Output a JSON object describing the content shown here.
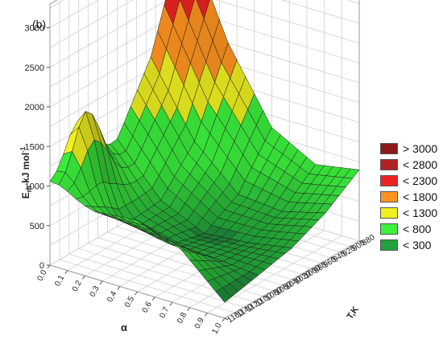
{
  "panel_label": "(b)",
  "chart_data": {
    "type": "surface",
    "title": "",
    "zlabel_main": "E",
    "zlabel_sub": "m",
    "zlabel_rest": " kJ mol",
    "zlabel_sup": "-1",
    "xlabel": "α",
    "ylabel": "T,K",
    "z_ticks": [
      "0",
      "500",
      "1000",
      "1500",
      "2000",
      "2500",
      "3000"
    ],
    "zlim": [
      0,
      3300
    ],
    "alpha_ticks": [
      "0.0",
      "0.1",
      "0.2",
      "0.3",
      "0.4",
      "0.5",
      "0.6",
      "0.7",
      "0.8",
      "0.9",
      "1.0"
    ],
    "alpha_range": [
      0.0,
      1.0
    ],
    "T_ticks": [
      "880",
      "900",
      "920",
      "940",
      "960",
      "980",
      "1000",
      "1020",
      "1040",
      "1060",
      "1080",
      "1100",
      "1120",
      "1140",
      "1160"
    ],
    "T_range": [
      880,
      1160
    ],
    "grid": true,
    "surface_samples": {
      "description_axes": "rows: alpha; columns: T",
      "alpha": [
        0.0,
        0.25,
        0.5,
        0.75,
        1.0
      ],
      "T": [
        880,
        950,
        1020,
        1090,
        1160
      ],
      "E": [
        [
          3300,
          1900,
          1100,
          900,
          1000
        ],
        [
          2000,
          1000,
          500,
          450,
          850
        ],
        [
          1100,
          500,
          250,
          350,
          900
        ],
        [
          800,
          450,
          300,
          350,
          700
        ],
        [
          900,
          600,
          400,
          300,
          200
        ]
      ],
      "peak": {
        "alpha": 0.05,
        "T": 1100,
        "E": 1950
      }
    },
    "legend_position": "right",
    "legend": [
      {
        "label": "> 3000",
        "color": "#8b1a1a"
      },
      {
        "label": "< 2800",
        "color": "#b22222"
      },
      {
        "label": "< 2300",
        "color": "#ee2222"
      },
      {
        "label": "< 1800",
        "color": "#ff9420"
      },
      {
        "label": "< 1300",
        "color": "#eef020"
      },
      {
        "label": "< 800",
        "color": "#3cf03c"
      },
      {
        "label": "< 300",
        "color": "#22a33a"
      }
    ]
  }
}
